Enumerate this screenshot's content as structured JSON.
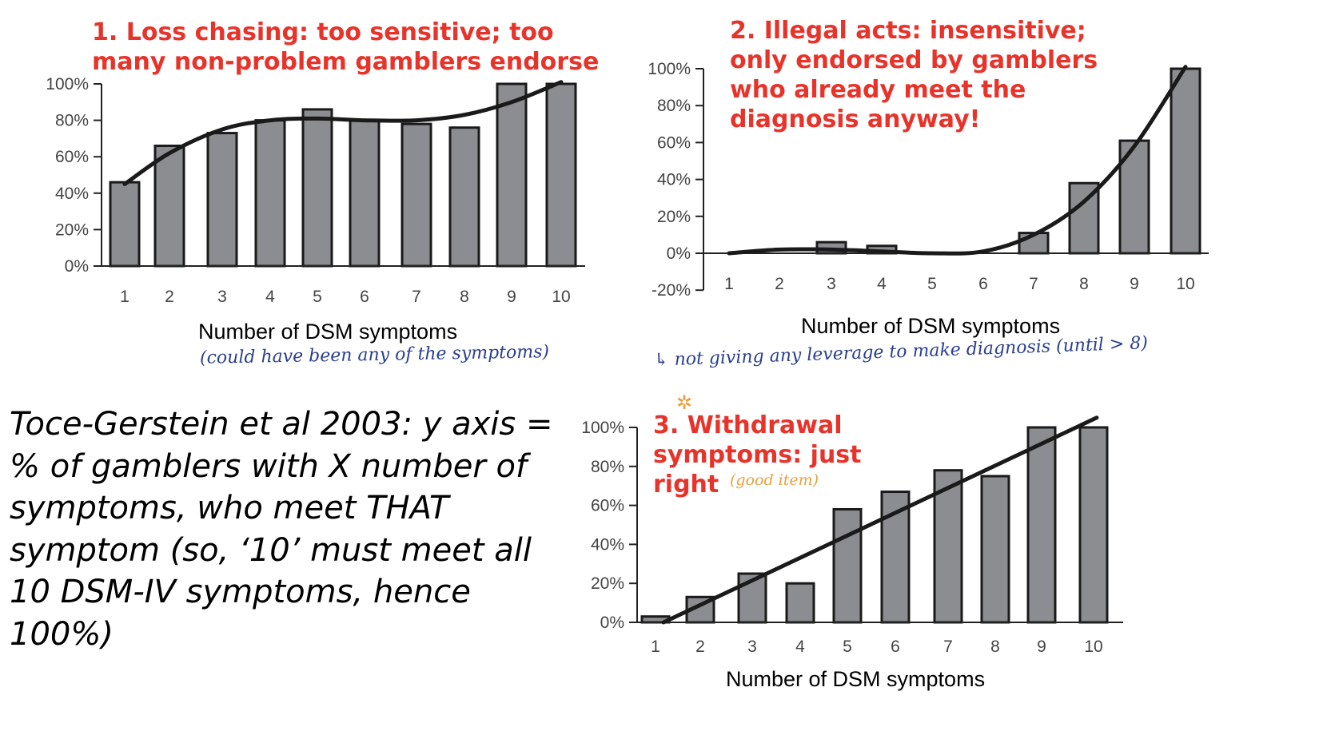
{
  "note": "Toce-Gerstein et al 2003: y axis = % of gamblers with X number of symptoms, who meet THAT symptom (so, ‘10’ must meet all 10 DSM-IV symptoms, hence 100%)",
  "colors": {
    "title": "#e8332a",
    "bar": "#8c8d90",
    "handwriting_blue": "#2a3f8f",
    "handwriting_orange": "#e8a040"
  },
  "chart_data": [
    {
      "type": "bar",
      "title": "1. Loss chasing: too sensitive; too\nmany non-problem gamblers endorse",
      "xlabel": "Number of DSM symptoms",
      "annotation": "(could have been any of the symptoms)",
      "categories": [
        "1",
        "2",
        "3",
        "4",
        "5",
        "6",
        "7",
        "8",
        "9",
        "10"
      ],
      "values": [
        46,
        66,
        73,
        80,
        86,
        80,
        78,
        76,
        100,
        100
      ],
      "trendline": [
        45,
        62,
        75,
        80,
        81,
        80,
        80,
        83,
        90,
        101
      ],
      "ylim": [
        0,
        100
      ],
      "yticks": [
        "0%",
        "20%",
        "40%",
        "60%",
        "80%",
        "100%"
      ],
      "ytick_values": [
        0,
        20,
        40,
        60,
        80,
        100
      ]
    },
    {
      "type": "bar",
      "title": "2. Illegal acts: insensitive;\nonly endorsed by gamblers\nwho already meet the\ndiagnosis anyway!",
      "xlabel": "Number of DSM symptoms",
      "annotation": "↳ not giving any leverage to make diagnosis (until > 8)",
      "categories": [
        "1",
        "2",
        "3",
        "4",
        "5",
        "6",
        "7",
        "8",
        "9",
        "10"
      ],
      "values": [
        0,
        0,
        6,
        4,
        0,
        0,
        11,
        38,
        61,
        100
      ],
      "trendline": [
        0,
        2,
        2,
        1,
        0,
        1,
        10,
        28,
        58,
        101
      ],
      "ylim": [
        -20,
        100
      ],
      "yticks": [
        "-20%",
        "0%",
        "20%",
        "40%",
        "60%",
        "80%",
        "100%"
      ],
      "ytick_values": [
        -20,
        0,
        20,
        40,
        60,
        80,
        100
      ]
    },
    {
      "type": "bar",
      "title": "3. Withdrawal\nsymptoms: just\nright",
      "xlabel": "Number of DSM symptoms",
      "annotation": "(good item)",
      "categories": [
        "1",
        "2",
        "3",
        "4",
        "5",
        "6",
        "7",
        "8",
        "9",
        "10"
      ],
      "values": [
        3,
        13,
        25,
        20,
        58,
        67,
        78,
        75,
        100,
        100
      ],
      "trendline": [
        0,
        12,
        24,
        35,
        47,
        58,
        70,
        82,
        93,
        105
      ],
      "ylim": [
        0,
        100
      ],
      "yticks": [
        "0%",
        "20%",
        "40%",
        "60%",
        "80%",
        "100%"
      ],
      "ytick_values": [
        0,
        20,
        40,
        60,
        80,
        100
      ]
    }
  ]
}
